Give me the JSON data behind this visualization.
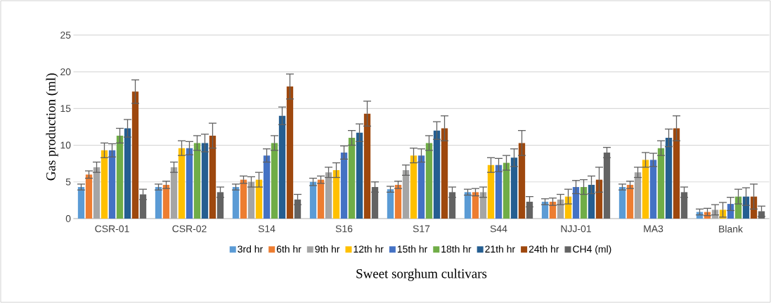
{
  "chart_data": {
    "type": "bar",
    "xlabel": "Sweet sorghum cultivars",
    "ylabel": "Gas production (ml)",
    "categories": [
      "CSR-01",
      "CSR-02",
      "S14",
      "S16",
      "S17",
      "S44",
      "NJJ-01",
      "MA3",
      "Blank"
    ],
    "ylim": [
      0,
      25
    ],
    "yticks": [
      0,
      5,
      10,
      15,
      20,
      25
    ],
    "grid": "y",
    "legend": "bottom",
    "series": [
      {
        "name": "3rd hr",
        "color": "#5b9bd5",
        "values": [
          4.3,
          4.3,
          4.3,
          5,
          4,
          3.6,
          2.3,
          4.3,
          0.9
        ],
        "errors": [
          0.4,
          0.4,
          0.4,
          0.5,
          0.4,
          0.4,
          0.4,
          0.4,
          0.4
        ]
      },
      {
        "name": "6th hr",
        "color": "#ed7d31",
        "values": [
          6,
          4.6,
          5.3,
          5.3,
          4.6,
          3.6,
          2.3,
          4.6,
          0.9
        ],
        "errors": [
          0.5,
          0.5,
          0.5,
          0.5,
          0.5,
          0.5,
          0.5,
          0.5,
          0.5
        ]
      },
      {
        "name": "9th hr",
        "color": "#a5a5a5",
        "values": [
          7,
          7,
          5,
          6.3,
          6.6,
          3.6,
          2.6,
          6.3,
          1.2
        ],
        "errors": [
          0.7,
          0.7,
          0.7,
          0.7,
          0.7,
          0.7,
          0.7,
          0.7,
          0.7
        ]
      },
      {
        "name": "12th hr",
        "color": "#ffc000",
        "values": [
          9.3,
          9.6,
          5.3,
          6.6,
          8.6,
          7.3,
          3,
          8,
          1.2
        ],
        "errors": [
          1,
          1,
          1,
          1,
          1,
          1,
          1,
          1,
          1
        ]
      },
      {
        "name": "15th hr",
        "color": "#4472c4",
        "values": [
          9.3,
          9.6,
          8.6,
          9,
          8.6,
          7.3,
          4.3,
          8,
          2
        ],
        "errors": [
          0.9,
          0.9,
          0.9,
          0.9,
          0.9,
          0.9,
          0.9,
          0.9,
          0.9
        ]
      },
      {
        "name": "18th hr",
        "color": "#70ad47",
        "values": [
          11.3,
          10.3,
          10.3,
          11,
          10.3,
          7.6,
          4.3,
          9.6,
          3
        ],
        "errors": [
          1,
          1,
          1,
          1,
          1,
          1,
          1,
          1,
          1
        ]
      },
      {
        "name": "21th hr",
        "color": "#255e91",
        "values": [
          12.3,
          10.3,
          14,
          11.7,
          12,
          8.3,
          4.6,
          11,
          3
        ],
        "errors": [
          1.2,
          1.2,
          1.2,
          1.2,
          1.2,
          1.2,
          1.2,
          1.2,
          1.2
        ]
      },
      {
        "name": "24th hr",
        "color": "#9e480e",
        "values": [
          17.3,
          11.3,
          18,
          14.3,
          12.3,
          10.3,
          5.3,
          12.3,
          3
        ],
        "errors": [
          1.6,
          1.7,
          1.7,
          1.7,
          1.7,
          1.7,
          1.7,
          1.7,
          1.7
        ]
      },
      {
        "name": "CH4 (ml)",
        "color": "#636363",
        "values": [
          3.3,
          3.6,
          2.6,
          4.3,
          3.6,
          2.3,
          9,
          3.6,
          1
        ],
        "errors": [
          0.7,
          0.7,
          0.7,
          0.7,
          0.7,
          0.7,
          0.7,
          0.7,
          0.7
        ]
      }
    ]
  }
}
